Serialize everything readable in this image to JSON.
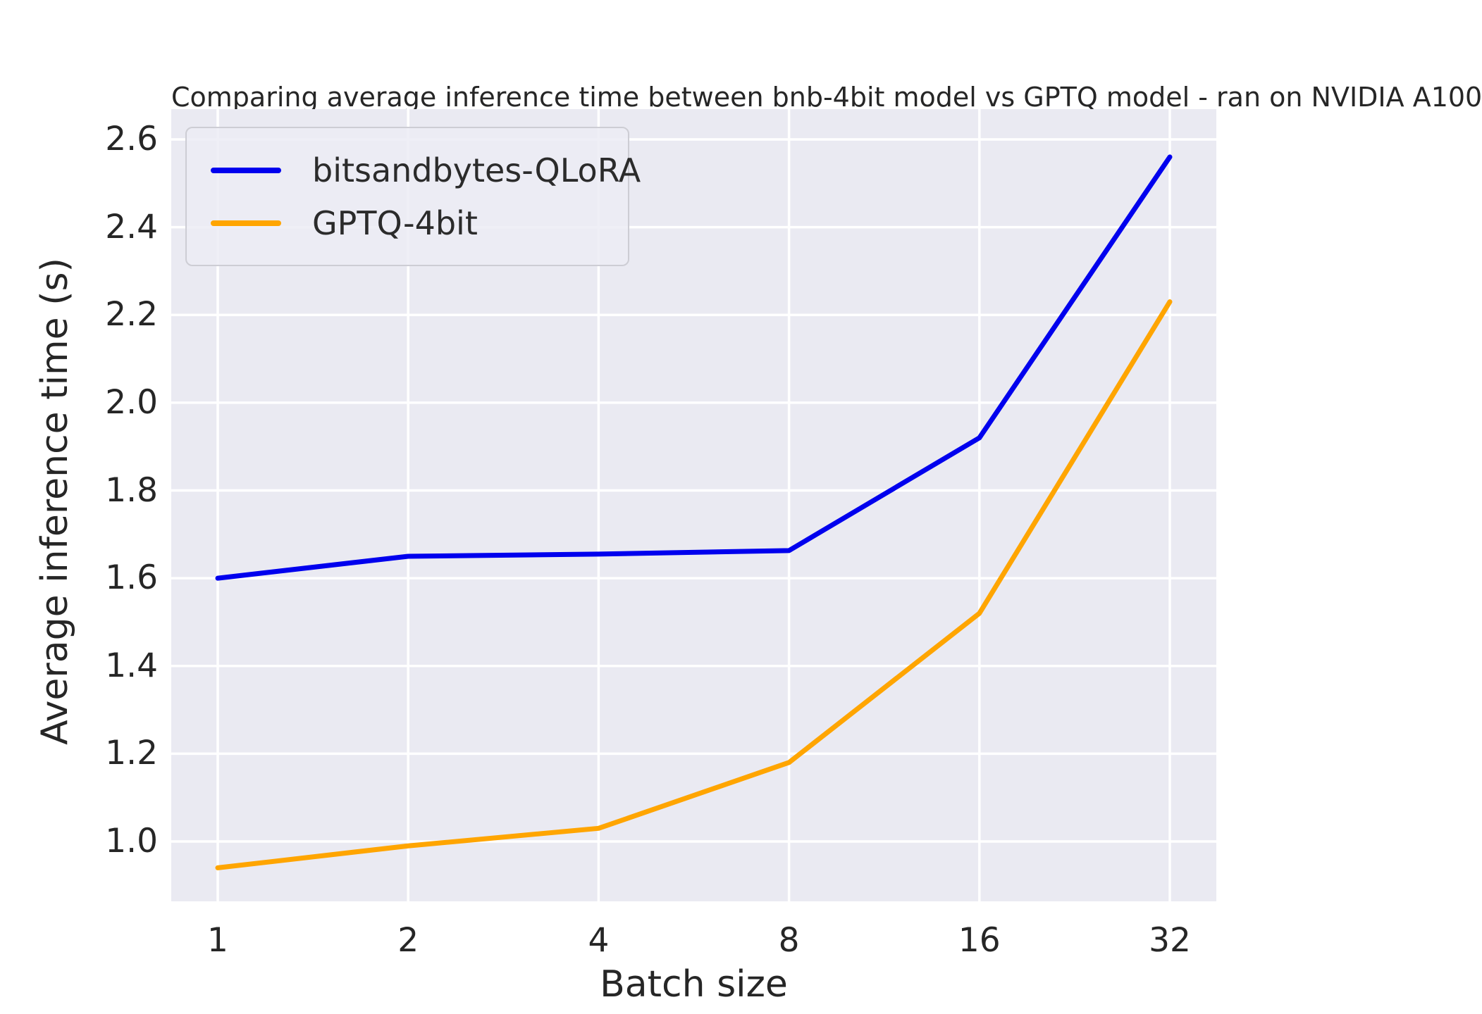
{
  "chart_data": {
    "type": "line",
    "title": "Comparing average inference time between bnb-4bit model vs GPTQ model - ran on NVIDIA A100",
    "xlabel": "Batch size",
    "ylabel": "Average inference time (s)",
    "x_scale": "log2",
    "categories": [
      1,
      2,
      4,
      8,
      16,
      32
    ],
    "series": [
      {
        "name": "bitsandbytes-QLoRA",
        "color": "#0000ee",
        "values": [
          1.6,
          1.65,
          1.655,
          1.663,
          1.92,
          2.56
        ]
      },
      {
        "name": "GPTQ-4bit",
        "color": "#ffa500",
        "values": [
          0.94,
          0.99,
          1.03,
          1.18,
          1.52,
          2.23
        ]
      }
    ],
    "yticks": [
      1.0,
      1.2,
      1.4,
      1.6,
      1.8,
      2.0,
      2.2,
      2.4,
      2.6
    ],
    "ylim": [
      0.8636,
      2.669
    ],
    "grid": true,
    "grid_color": "#ffffff",
    "plot_bg": "#eaeaf2",
    "text_color": "#262626",
    "legend_position": "upper-left"
  }
}
